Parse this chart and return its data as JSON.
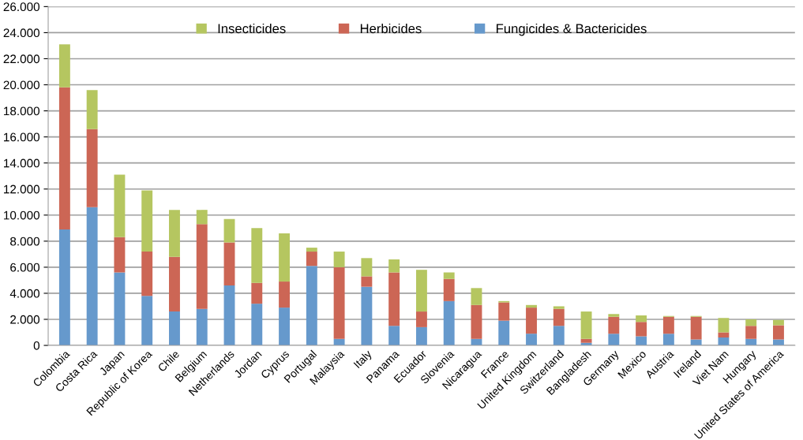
{
  "chart_data": {
    "type": "bar",
    "stacked": true,
    "grid": "y",
    "legend": "top",
    "ylim": [
      0,
      26000
    ],
    "yticks": [
      0,
      {
        "value": 2000,
        "label": "2.000"
      },
      {
        "value": 4000,
        "label": "4.000"
      },
      {
        "value": 6000,
        "label": "6.000"
      },
      {
        "value": 8000,
        "label": "8.000"
      },
      {
        "value": 10000,
        "label": "10.000"
      },
      {
        "value": 12000,
        "label": "12.000"
      },
      {
        "value": 14000,
        "label": "14.000"
      },
      {
        "value": 16000,
        "label": "16.000"
      },
      {
        "value": 18000,
        "label": "18.000"
      },
      {
        "value": 20000,
        "label": "20.000"
      },
      {
        "value": 22000,
        "label": "22.000"
      },
      {
        "value": 24000,
        "label": "24.000"
      },
      {
        "value": 26000,
        "label": "26.000"
      }
    ],
    "categories": [
      "Colombia",
      "Costa Rica",
      "Japan",
      "Republic of Korea",
      "Chile",
      "Belgium",
      "Netherlands",
      "Jordan",
      "Cyprus",
      "Portugal",
      "Malaysia",
      "Italy",
      "Panama",
      "Ecuador",
      "Slovenia",
      "Nicaragua",
      "France",
      "United Kingdom",
      "Switzerland",
      "Bangladesh",
      "Germany",
      "Mexico",
      "Austria",
      "Ireland",
      "Viet Nam",
      "Hungary",
      "United States of America"
    ],
    "series": [
      {
        "name": "Fungicides & Bactericides",
        "color": "#6699cc",
        "values": [
          8900,
          10600,
          5600,
          3800,
          2600,
          2800,
          4600,
          3200,
          2900,
          6100,
          500,
          4500,
          1500,
          1400,
          3400,
          500,
          1900,
          900,
          1500,
          200,
          900,
          700,
          900,
          450,
          600,
          500,
          450
        ]
      },
      {
        "name": "Herbicides",
        "color": "#cc6655",
        "values": [
          10900,
          6000,
          2700,
          3400,
          4200,
          6500,
          3300,
          1600,
          2000,
          1100,
          5500,
          800,
          4100,
          1200,
          1700,
          2600,
          1400,
          2000,
          1300,
          300,
          1300,
          1100,
          1300,
          1750,
          400,
          1000,
          1100
        ]
      },
      {
        "name": "Insecticides",
        "color": "#b5c660",
        "values": [
          3300,
          3000,
          4800,
          4700,
          3600,
          1100,
          1800,
          4200,
          3700,
          300,
          1200,
          1400,
          1000,
          3200,
          500,
          1300,
          100,
          200,
          200,
          2100,
          200,
          500,
          50,
          50,
          1100,
          500,
          400
        ]
      }
    ]
  }
}
